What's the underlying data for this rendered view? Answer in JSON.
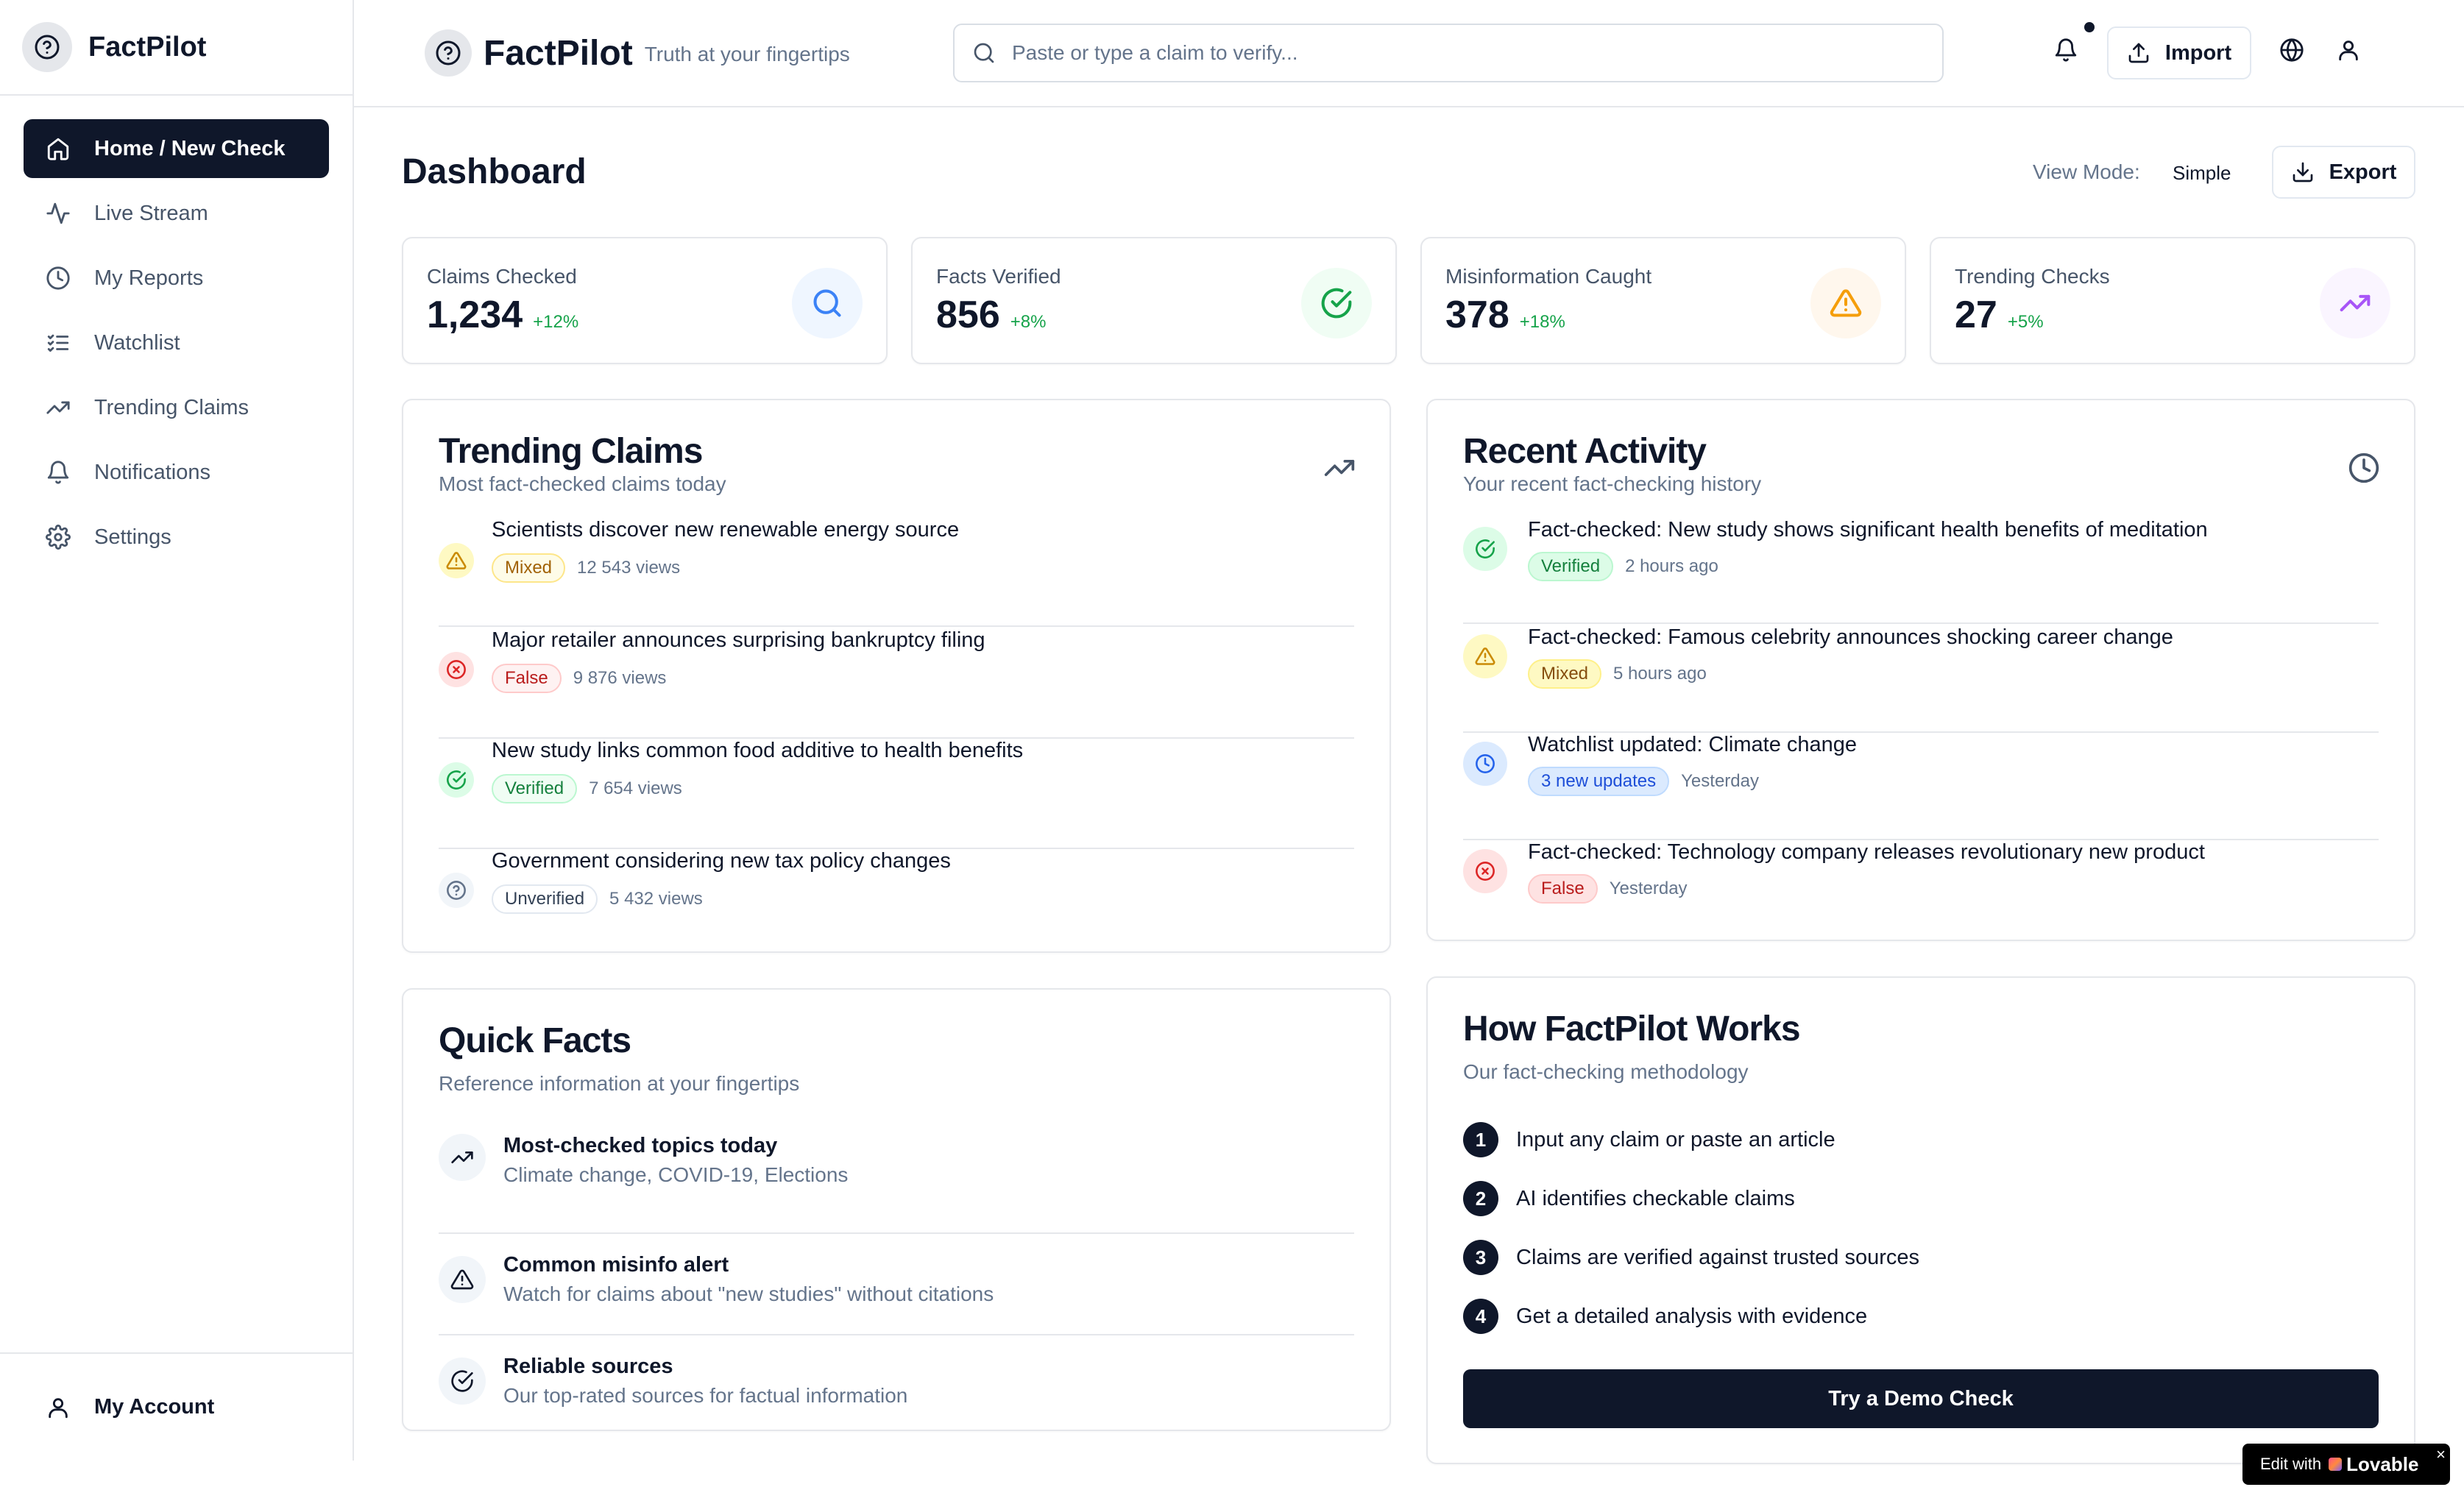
{
  "app": {
    "name": "FactPilot",
    "tagline": "Truth at your fingertips"
  },
  "sidebar": {
    "items": [
      {
        "label": "Home / New Check",
        "icon": "home-icon",
        "active": true
      },
      {
        "label": "Live Stream",
        "icon": "activity-icon"
      },
      {
        "label": "My Reports",
        "icon": "clock-icon"
      },
      {
        "label": "Watchlist",
        "icon": "list-checks-icon"
      },
      {
        "label": "Trending Claims",
        "icon": "trending-up-icon"
      },
      {
        "label": "Notifications",
        "icon": "bell-icon"
      },
      {
        "label": "Settings",
        "icon": "gear-icon"
      }
    ],
    "account_label": "My Account"
  },
  "header": {
    "search_placeholder": "Paste or type a claim to verify...",
    "import_label": "Import"
  },
  "dashboard": {
    "title": "Dashboard",
    "view_mode_label": "View Mode:",
    "view_mode_value": "Simple",
    "export_label": "Export"
  },
  "stats": [
    {
      "label": "Claims Checked",
      "value": "1,234",
      "delta": "+12%",
      "icon": "search-icon",
      "color": "#3b82f6",
      "bg": "#eff6ff"
    },
    {
      "label": "Facts Verified",
      "value": "856",
      "delta": "+8%",
      "icon": "check-circle-icon",
      "color": "#16a34a",
      "bg": "#f0fdf4"
    },
    {
      "label": "Misinformation Caught",
      "value": "378",
      "delta": "+18%",
      "icon": "alert-triangle-icon",
      "color": "#f59e0b",
      "bg": "#fff7ed"
    },
    {
      "label": "Trending Checks",
      "value": "27",
      "delta": "+5%",
      "icon": "trending-up-icon",
      "color": "#a855f7",
      "bg": "#faf5ff"
    }
  ],
  "trending": {
    "title": "Trending Claims",
    "subtitle": "Most fact-checked claims today",
    "items": [
      {
        "title": "Scientists discover new renewable energy source",
        "status": "Mixed",
        "views": "12 543 views"
      },
      {
        "title": "Major retailer announces surprising bankruptcy filing",
        "status": "False",
        "views": "9 876 views"
      },
      {
        "title": "New study links common food additive to health benefits",
        "status": "Verified",
        "views": "7 654 views"
      },
      {
        "title": "Government considering new tax policy changes",
        "status": "Unverified",
        "views": "5 432 views"
      }
    ]
  },
  "recent": {
    "title": "Recent Activity",
    "subtitle": "Your recent fact-checking history",
    "items": [
      {
        "title": "Fact-checked: New study shows significant health benefits of meditation",
        "status": "Verified",
        "time": "2 hours ago"
      },
      {
        "title": "Fact-checked: Famous celebrity announces shocking career change",
        "status": "Mixed",
        "time": "5 hours ago"
      },
      {
        "title": "Watchlist updated: Climate change",
        "status": "3 new updates",
        "time": "Yesterday"
      },
      {
        "title": "Fact-checked: Technology company releases revolutionary new product",
        "status": "False",
        "time": "Yesterday"
      }
    ]
  },
  "quick_facts": {
    "title": "Quick Facts",
    "subtitle": "Reference information at your fingertips",
    "items": [
      {
        "title": "Most-checked topics today",
        "desc": "Climate change, COVID-19, Elections"
      },
      {
        "title": "Common misinfo alert",
        "desc": "Watch for claims about \"new studies\" without citations"
      },
      {
        "title": "Reliable sources",
        "desc": "Our top-rated sources for factual information"
      }
    ]
  },
  "how": {
    "title": "How FactPilot Works",
    "subtitle": "Our fact-checking methodology",
    "steps": [
      {
        "num": "1",
        "text": "Input any claim or paste an article"
      },
      {
        "num": "2",
        "text": "AI identifies checkable claims"
      },
      {
        "num": "3",
        "text": "Claims are verified against trusted sources"
      },
      {
        "num": "4",
        "text": "Get a detailed analysis with evidence"
      }
    ],
    "cta": "Try a Demo Check"
  },
  "lovable": {
    "prefix": "Edit with",
    "brand": "Lovable",
    "close": "×"
  }
}
